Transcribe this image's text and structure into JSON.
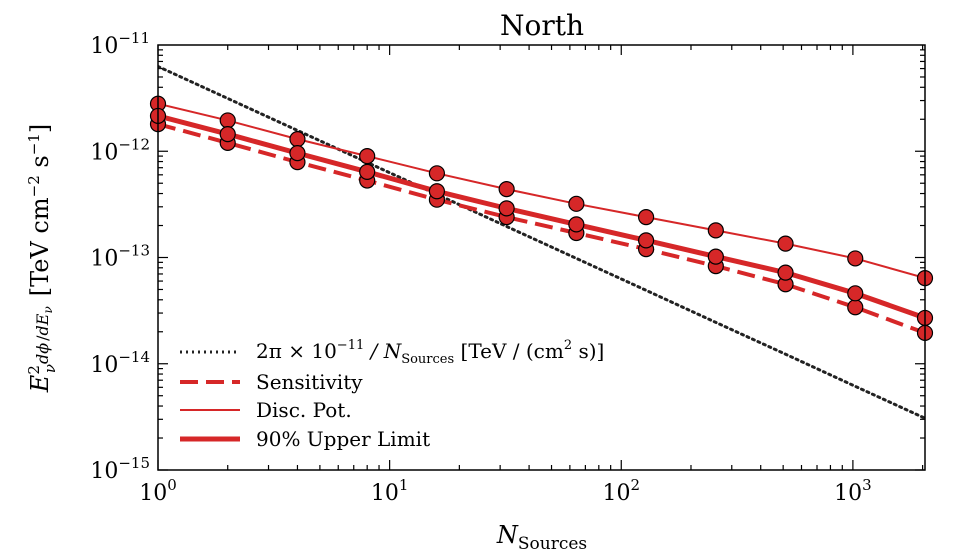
{
  "chart_data": {
    "type": "line",
    "title": "North",
    "xlabel": {
      "base": "N",
      "sub": "Sources"
    },
    "ylabel": {
      "prefix": "E",
      "prefix_sub": "ν",
      "prefix_sup": "2",
      "frac_num": "dϕ",
      "frac_den": "dE",
      "frac_den_sub": "ν",
      "units_open": "[TeV cm",
      "units_exp1": "−2",
      "units_mid": " s",
      "units_exp2": "−1",
      "units_close": "]"
    },
    "x_scale": "log",
    "y_scale": "log",
    "xlim": [
      1,
      2048
    ],
    "ylim": [
      1e-15,
      1e-11
    ],
    "x_ticks": [
      {
        "value": 1,
        "base": "10",
        "exp": "0"
      },
      {
        "value": 10,
        "base": "10",
        "exp": "1"
      },
      {
        "value": 100,
        "base": "10",
        "exp": "2"
      },
      {
        "value": 1000,
        "base": "10",
        "exp": "3"
      }
    ],
    "y_ticks": [
      {
        "value": 1e-15,
        "base": "10",
        "exp": "−15"
      },
      {
        "value": 1e-14,
        "base": "10",
        "exp": "−14"
      },
      {
        "value": 1e-13,
        "base": "10",
        "exp": "−13"
      },
      {
        "value": 1e-12,
        "base": "10",
        "exp": "−12"
      },
      {
        "value": 1e-11,
        "base": "10",
        "exp": "−11"
      }
    ],
    "legend_position": "lower-left",
    "x": [
      1,
      2,
      4,
      8,
      16,
      32,
      64,
      128,
      256,
      512,
      1024,
      2048
    ],
    "series": [
      {
        "name_parts": [
          "2π × 10",
          "−11",
          " / N",
          "Sources",
          " [TeV / (cm",
          "2",
          " s)]"
        ],
        "style": "dotted",
        "color": "#222222",
        "values": [
          6.28e-12,
          3.14e-12,
          1.57e-12,
          7.85e-13,
          3.93e-13,
          1.96e-13,
          9.81e-14,
          4.91e-14,
          2.45e-14,
          1.23e-14,
          6.13e-15,
          3.07e-15
        ]
      },
      {
        "name": "Sensitivity",
        "style": "dashed",
        "color": "#d62728",
        "values": [
          1.8e-12,
          1.2e-12,
          7.9e-13,
          5.3e-13,
          3.5e-13,
          2.4e-13,
          1.7e-13,
          1.2e-13,
          8.3e-14,
          5.6e-14,
          3.4e-14,
          1.95e-14
        ],
        "markers": true
      },
      {
        "name": "Disc. Pot.",
        "style": "thin",
        "color": "#d62728",
        "values": [
          2.8e-12,
          1.95e-12,
          1.3e-12,
          9e-13,
          6.2e-13,
          4.4e-13,
          3.2e-13,
          2.4e-13,
          1.8e-13,
          1.35e-13,
          9.8e-14,
          6.4e-14
        ],
        "markers": true
      },
      {
        "name": "90% Upper Limit",
        "style": "thick",
        "color": "#d62728",
        "values": [
          2.15e-12,
          1.45e-12,
          9.6e-13,
          6.4e-13,
          4.2e-13,
          2.9e-13,
          2.05e-13,
          1.45e-13,
          1.02e-13,
          7.2e-14,
          4.6e-14,
          2.7e-14
        ],
        "markers": true
      }
    ],
    "colors": {
      "red": "#d62728",
      "marker_edge": "#000000",
      "dotted": "#222222"
    }
  }
}
